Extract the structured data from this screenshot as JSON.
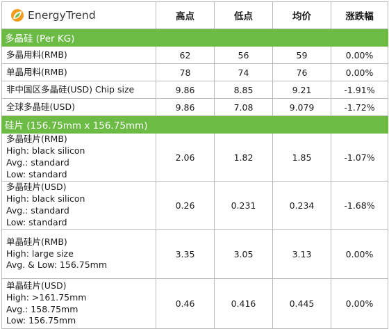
{
  "brand": {
    "logo_text": "EnergyTrend",
    "logo_colors": {
      "leaf_orange": "#f39c1e",
      "leaf_green": "#6cbb45"
    }
  },
  "header": {
    "high": "高点",
    "low": "低点",
    "average": "均价",
    "change": "涨跌幅"
  },
  "colors": {
    "section_background": "#6cbb45",
    "section_text": "#ffffff",
    "grid_line": "#b9b9b9"
  },
  "sections": [
    {
      "title": "多晶硅 (Per KG)",
      "rows": [
        {
          "label": [
            "多晶用料(RMB)"
          ],
          "high": "62",
          "low": "56",
          "avg": "59",
          "change": "0.00%"
        },
        {
          "label": [
            "单晶用料(RMB)"
          ],
          "high": "78",
          "low": "74",
          "avg": "76",
          "change": "0.00%"
        },
        {
          "label": [
            "非中国区多晶硅(USD) Chip size"
          ],
          "high": "9.86",
          "low": "8.85",
          "avg": "9.21",
          "change": "-1.91%"
        },
        {
          "label": [
            "全球多晶硅(USD)"
          ],
          "high": "9.86",
          "low": "7.08",
          "avg": "9.079",
          "change": "-1.72%"
        }
      ]
    },
    {
      "title": "硅片 (156.75mm x 156.75mm)",
      "rows": [
        {
          "label": [
            "多晶硅片(RMB)",
            "High: black silicon",
            "Avg.: standard",
            "Low: standard"
          ],
          "high": "2.06",
          "low": "1.82",
          "avg": "1.85",
          "change": "-1.07%"
        },
        {
          "label": [
            "多晶硅片(USD)",
            "High: black silicon",
            "Avg.: standard",
            "Low: standard"
          ],
          "high": "0.26",
          "low": "0.231",
          "avg": "0.234",
          "change": "-1.68%"
        },
        {
          "label": [
            "单晶硅片(RMB)",
            "High: large size",
            "Avg. & Low: 156.75mm"
          ],
          "high": "3.35",
          "low": "3.05",
          "avg": "3.13",
          "change": "0.00%"
        },
        {
          "label": [
            "单晶硅片(USD)",
            "High: >161.75mm",
            "Avg.: 158.75mm",
            "Low: 156.75mm"
          ],
          "high": "0.46",
          "low": "0.416",
          "avg": "0.445",
          "change": "0.00%"
        }
      ]
    }
  ]
}
